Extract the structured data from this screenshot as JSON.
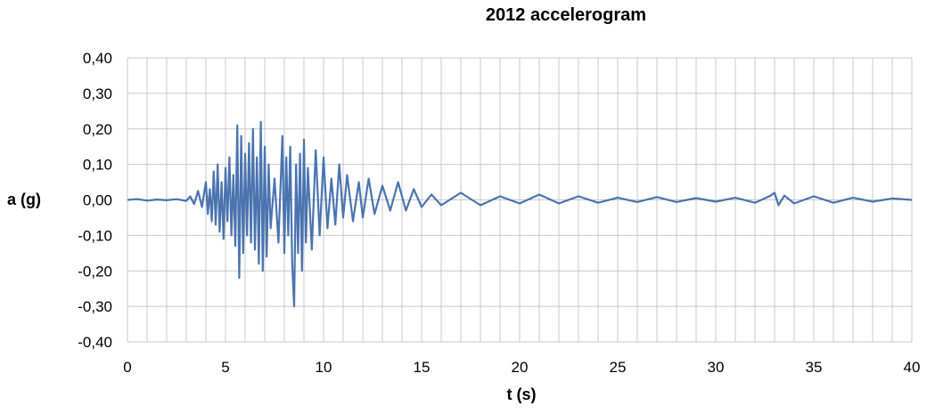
{
  "chart_data": {
    "type": "line",
    "title": "2012 accelerogram",
    "xlabel": "t (s)",
    "ylabel": "a (g)",
    "xlim": [
      0,
      40
    ],
    "ylim": [
      -0.4,
      0.4
    ],
    "x_ticks": [
      "0",
      "5",
      "10",
      "15",
      "20",
      "25",
      "30",
      "35",
      "40"
    ],
    "y_ticks": [
      "0,40",
      "0,30",
      "0,20",
      "0,10",
      "0,00",
      "-0,10",
      "-0,20",
      "-0,30",
      "-0,40"
    ],
    "grid": true,
    "line_color": "#4a74b0",
    "grid_color": "#c8c8c8",
    "series": [
      {
        "values": [
          [
            0.0,
            0.0
          ],
          [
            0.5,
            0.002
          ],
          [
            1.0,
            -0.002
          ],
          [
            1.5,
            0.001
          ],
          [
            2.0,
            -0.001
          ],
          [
            2.5,
            0.002
          ],
          [
            3.0,
            -0.003
          ],
          [
            3.2,
            0.01
          ],
          [
            3.4,
            -0.012
          ],
          [
            3.6,
            0.025
          ],
          [
            3.8,
            -0.02
          ],
          [
            4.0,
            0.05
          ],
          [
            4.1,
            -0.04
          ],
          [
            4.2,
            0.03
          ],
          [
            4.3,
            -0.06
          ],
          [
            4.4,
            0.08
          ],
          [
            4.5,
            -0.07
          ],
          [
            4.6,
            0.1
          ],
          [
            4.7,
            -0.09
          ],
          [
            4.8,
            0.05
          ],
          [
            4.9,
            -0.11
          ],
          [
            5.0,
            0.09
          ],
          [
            5.1,
            -0.06
          ],
          [
            5.2,
            0.12
          ],
          [
            5.3,
            -0.1
          ],
          [
            5.4,
            0.07
          ],
          [
            5.5,
            -0.13
          ],
          [
            5.6,
            0.21
          ],
          [
            5.7,
            -0.22
          ],
          [
            5.8,
            0.18
          ],
          [
            5.9,
            -0.15
          ],
          [
            6.0,
            0.13
          ],
          [
            6.1,
            -0.1
          ],
          [
            6.2,
            0.16
          ],
          [
            6.3,
            -0.12
          ],
          [
            6.4,
            0.2
          ],
          [
            6.5,
            -0.14
          ],
          [
            6.6,
            0.12
          ],
          [
            6.7,
            -0.18
          ],
          [
            6.8,
            0.22
          ],
          [
            6.9,
            -0.2
          ],
          [
            7.0,
            0.15
          ],
          [
            7.1,
            -0.16
          ],
          [
            7.2,
            0.1
          ],
          [
            7.3,
            -0.08
          ],
          [
            7.5,
            0.06
          ],
          [
            7.7,
            -0.12
          ],
          [
            7.9,
            0.18
          ],
          [
            8.0,
            -0.15
          ],
          [
            8.1,
            0.12
          ],
          [
            8.2,
            -0.1
          ],
          [
            8.3,
            0.15
          ],
          [
            8.4,
            -0.18
          ],
          [
            8.5,
            -0.3
          ],
          [
            8.6,
            0.1
          ],
          [
            8.7,
            -0.15
          ],
          [
            8.8,
            0.13
          ],
          [
            8.9,
            -0.2
          ],
          [
            9.0,
            0.17
          ],
          [
            9.1,
            -0.12
          ],
          [
            9.2,
            0.09
          ],
          [
            9.4,
            -0.14
          ],
          [
            9.6,
            0.14
          ],
          [
            9.8,
            -0.1
          ],
          [
            10.0,
            0.12
          ],
          [
            10.2,
            -0.08
          ],
          [
            10.4,
            0.06
          ],
          [
            10.6,
            -0.07
          ],
          [
            10.8,
            0.1
          ],
          [
            11.0,
            -0.05
          ],
          [
            11.2,
            0.07
          ],
          [
            11.5,
            -0.06
          ],
          [
            11.8,
            0.05
          ],
          [
            12.0,
            -0.05
          ],
          [
            12.3,
            0.06
          ],
          [
            12.6,
            -0.04
          ],
          [
            13.0,
            0.04
          ],
          [
            13.4,
            -0.03
          ],
          [
            13.8,
            0.05
          ],
          [
            14.2,
            -0.03
          ],
          [
            14.6,
            0.03
          ],
          [
            15.0,
            -0.02
          ],
          [
            15.5,
            0.015
          ],
          [
            16.0,
            -0.015
          ],
          [
            17.0,
            0.02
          ],
          [
            18.0,
            -0.015
          ],
          [
            19.0,
            0.01
          ],
          [
            20.0,
            -0.01
          ],
          [
            21.0,
            0.015
          ],
          [
            22.0,
            -0.01
          ],
          [
            23.0,
            0.01
          ],
          [
            24.0,
            -0.008
          ],
          [
            25.0,
            0.006
          ],
          [
            26.0,
            -0.006
          ],
          [
            27.0,
            0.008
          ],
          [
            28.0,
            -0.006
          ],
          [
            29.0,
            0.005
          ],
          [
            30.0,
            -0.005
          ],
          [
            31.0,
            0.006
          ],
          [
            32.0,
            -0.008
          ],
          [
            32.8,
            0.012
          ],
          [
            33.0,
            0.02
          ],
          [
            33.2,
            -0.015
          ],
          [
            33.5,
            0.012
          ],
          [
            34.0,
            -0.01
          ],
          [
            35.0,
            0.01
          ],
          [
            36.0,
            -0.008
          ],
          [
            37.0,
            0.006
          ],
          [
            38.0,
            -0.005
          ],
          [
            39.0,
            0.004
          ],
          [
            40.0,
            0.0
          ]
        ]
      }
    ]
  }
}
